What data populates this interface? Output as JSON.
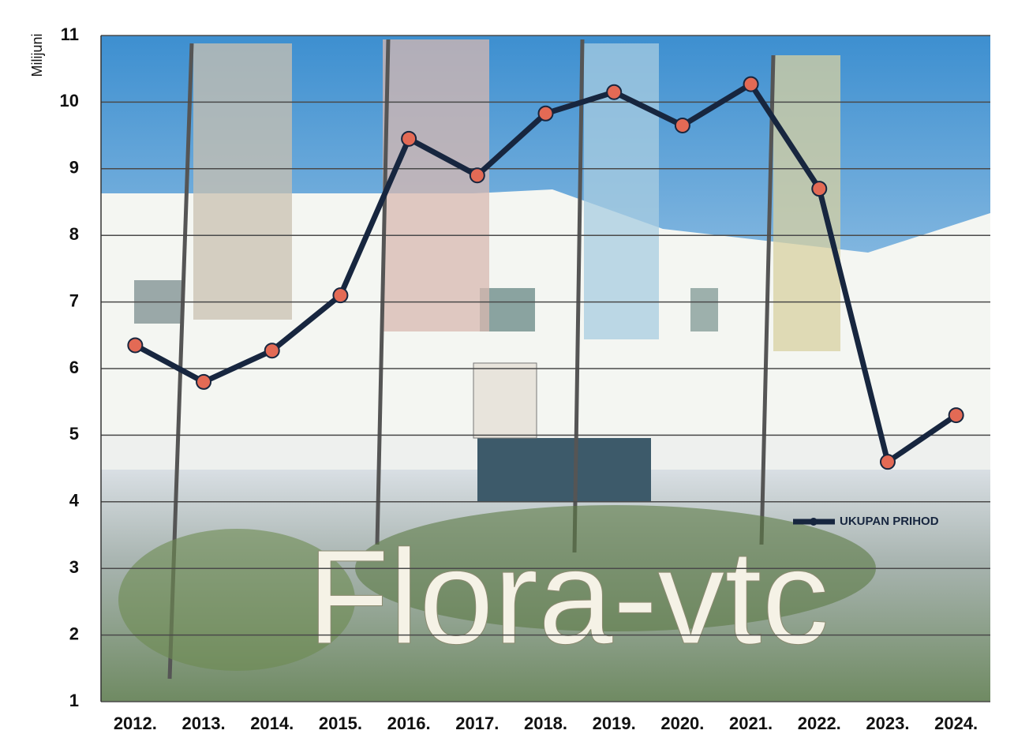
{
  "chart_data": {
    "type": "line",
    "y_label": "Milijuni",
    "watermark": "Flora-vtc",
    "categories": [
      "2012.",
      "2013.",
      "2014.",
      "2015.",
      "2016.",
      "2017.",
      "2018.",
      "2019.",
      "2020.",
      "2021.",
      "2022.",
      "2023.",
      "2024."
    ],
    "series": [
      {
        "name": "UKUPAN PRIHOD",
        "color": "#17263f",
        "marker_color": "#e36a55",
        "values": [
          6.35,
          5.8,
          6.27,
          7.1,
          9.45,
          8.9,
          9.83,
          10.15,
          9.65,
          10.27,
          8.7,
          4.6,
          5.3
        ]
      }
    ],
    "ylim": [
      1,
      11
    ],
    "yticks": [
      1,
      2,
      3,
      4,
      5,
      6,
      7,
      8,
      9,
      10,
      11
    ],
    "grid": true
  }
}
